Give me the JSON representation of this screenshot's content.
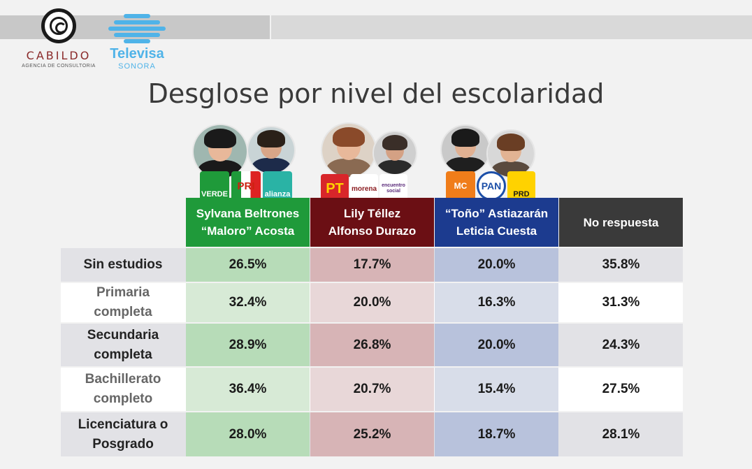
{
  "brand": {
    "cabildo_name": "CABILDO",
    "cabildo_tagline": "AGENCIA DE CONSULTORIA",
    "televisa_name": "Televisa",
    "televisa_region": "SONORA"
  },
  "colors": {
    "verde_alianza": "#1f9a3a",
    "morena": "#6b0f14",
    "pan_alliance": "#1c3b8f",
    "no_respuesta": "#3a3a3a",
    "col1_tint": "#b7dcb8",
    "col2_tint": "#d7b4b6",
    "col3_tint": "#b8c2dc"
  },
  "party_logos": {
    "col1": [
      "VERDE",
      "PRI",
      "alianza"
    ],
    "col2": [
      "PT",
      "morena",
      "encuentro social"
    ],
    "col3": [
      "MC",
      "PAN",
      "PRD"
    ]
  },
  "chart_data": {
    "type": "table",
    "title": "Desglose por nivel del escolaridad",
    "columns": [
      {
        "line1": "Sylvana Beltrones",
        "line2": "“Maloro” Acosta"
      },
      {
        "line1": "Lily Téllez",
        "line2": "Alfonso Durazo"
      },
      {
        "line1": "“Toño” Astiazarán",
        "line2": "Leticia Cuesta"
      },
      {
        "line1": "No respuesta",
        "line2": ""
      }
    ],
    "rows": [
      {
        "label": "Sin estudios",
        "values": [
          "26.5%",
          "17.7%",
          "20.0%",
          "35.8%"
        ]
      },
      {
        "label": "Primaria completa",
        "values": [
          "32.4%",
          "20.0%",
          "16.3%",
          "31.3%"
        ]
      },
      {
        "label": "Secundaria completa",
        "values": [
          "28.9%",
          "26.8%",
          "20.0%",
          "24.3%"
        ]
      },
      {
        "label": "Bachillerato completo",
        "values": [
          "36.4%",
          "20.7%",
          "15.4%",
          "27.5%"
        ]
      },
      {
        "label": "Licenciatura o Posgrado",
        "values": [
          "28.0%",
          "25.2%",
          "18.7%",
          "28.1%"
        ]
      }
    ]
  }
}
